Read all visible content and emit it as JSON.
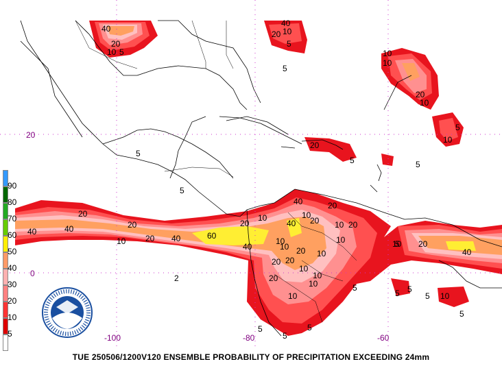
{
  "caption": "TUE 250506/1200V120  ENSEMBLE PROBABILITY OF PRECIPITATION EXCEEDING 24mm",
  "lat_labels": [
    "20",
    "0"
  ],
  "lon_labels": [
    "-100",
    "-80",
    "-60"
  ],
  "legend": {
    "levels": [
      {
        "label": "90",
        "color": "#3399ff"
      },
      {
        "label": "80",
        "color": "#006600"
      },
      {
        "label": "70",
        "color": "#22aa22"
      },
      {
        "label": "60",
        "color": "#66cc00"
      },
      {
        "label": "50",
        "color": "#ffee00"
      },
      {
        "label": "40",
        "color": "#ff9966"
      },
      {
        "label": "30",
        "color": "#ffb0b0"
      },
      {
        "label": "20",
        "color": "#ff8080"
      },
      {
        "label": "10",
        "color": "#ff3333"
      },
      {
        "label": "5",
        "color": "#dd0000"
      },
      {
        "label": "",
        "color": "#ffffff"
      }
    ]
  },
  "contour_labels": [
    "40",
    "20",
    "10",
    "5",
    "40",
    "20",
    "10",
    "5",
    "5",
    "10",
    "10",
    "20",
    "10",
    "5",
    "20",
    "10",
    "5",
    "5",
    "5",
    "20",
    "40",
    "40",
    "20",
    "10",
    "60",
    "40",
    "20",
    "10",
    "40",
    "20",
    "20",
    "20",
    "10",
    "20",
    "40",
    "10",
    "40",
    "20",
    "10",
    "10",
    "10",
    "20",
    "10",
    "10",
    "20",
    "10",
    "20",
    "10",
    "10",
    "5",
    "10",
    "20",
    "40",
    "5",
    "5",
    "5",
    "5",
    "5",
    "5",
    "10",
    "5",
    "5",
    "2",
    "5"
  ],
  "logo_color": "#1a4fa0"
}
